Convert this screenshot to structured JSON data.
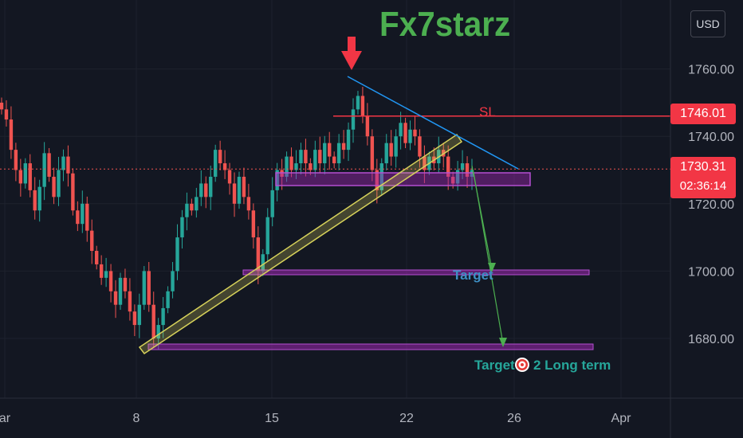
{
  "title": "Fx7starz",
  "currency_button": "USD",
  "price_axis": {
    "ticks": [
      "1760.00",
      "1740.00",
      "1720.00",
      "1700.00",
      "1680.00"
    ],
    "tick_values": [
      1760,
      1740,
      1720,
      1700,
      1680
    ],
    "sl_tag": "1746.01",
    "last_price_tag": "1730.31",
    "countdown": "02:36:14"
  },
  "time_axis": {
    "labels": [
      "ar",
      "8",
      "15",
      "22",
      "26",
      "Apr"
    ]
  },
  "annotations": {
    "sl_label": "SL",
    "target1_label": "Target",
    "target2_prefix": "Target",
    "target2_suffix": "2 Long term"
  },
  "colors": {
    "background": "#131722",
    "up_candle": "#26a69a",
    "down_candle": "#ef5350",
    "sl_line": "#f23645",
    "trendline_up": "#d6d15a",
    "trendline_down": "#2196f3",
    "zone": "#9c27b0",
    "title": "#4caf50",
    "arrow": "#f23645"
  },
  "chart_data": {
    "type": "candlestick",
    "title": "Fx7starz",
    "symbol_currency": "USD",
    "ylim": [
      1670,
      1770
    ],
    "x_ticks": [
      "ar",
      "8",
      "15",
      "22",
      "26",
      "Apr"
    ],
    "y_ticks": [
      1760,
      1740,
      1720,
      1700,
      1680
    ],
    "close_path": [
      1748,
      1745,
      1736,
      1730,
      1726,
      1732,
      1724,
      1718,
      1725,
      1735,
      1728,
      1722,
      1730,
      1734,
      1729,
      1718,
      1714,
      1720,
      1712,
      1706,
      1702,
      1698,
      1700,
      1694,
      1690,
      1698,
      1694,
      1688,
      1684,
      1690,
      1700,
      1690,
      1680,
      1684,
      1689,
      1694,
      1700,
      1710,
      1716,
      1720,
      1718,
      1722,
      1726,
      1722,
      1728,
      1736,
      1732,
      1730,
      1726,
      1720,
      1728,
      1722,
      1718,
      1710,
      1700,
      1705,
      1716,
      1724,
      1730,
      1728,
      1734,
      1730,
      1732,
      1736,
      1732,
      1730,
      1736,
      1732,
      1738,
      1734,
      1732,
      1738,
      1736,
      1742,
      1748,
      1752,
      1746,
      1740,
      1730,
      1724,
      1732,
      1738,
      1734,
      1740,
      1744,
      1738,
      1742,
      1740,
      1734,
      1730,
      1734,
      1732,
      1736,
      1734,
      1728,
      1726,
      1730,
      1732,
      1728,
      1730
    ],
    "sl_level": 1746.01,
    "last_price": 1730.31,
    "entry_zone": [
      1727,
      1731
    ],
    "target_1": 1699,
    "target_2": 1678,
    "grid": true
  }
}
